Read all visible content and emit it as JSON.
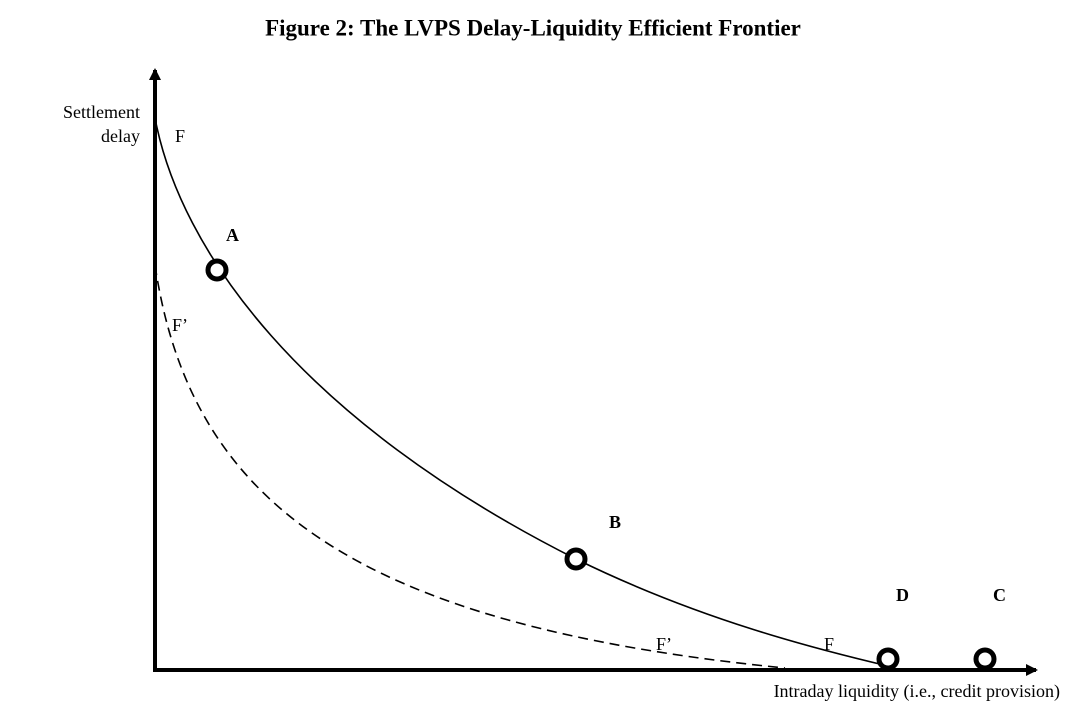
{
  "title": "Figure 2: The LVPS Delay-Liquidity Efficient Frontier",
  "y_axis_label": [
    "Settlement",
    "delay"
  ],
  "x_axis_label": "Intraday liquidity (i.e., credit provision)",
  "curve_labels": [
    "F",
    "F’",
    "F’",
    "F"
  ],
  "points": [
    "A",
    "B",
    "D",
    "C"
  ]
}
